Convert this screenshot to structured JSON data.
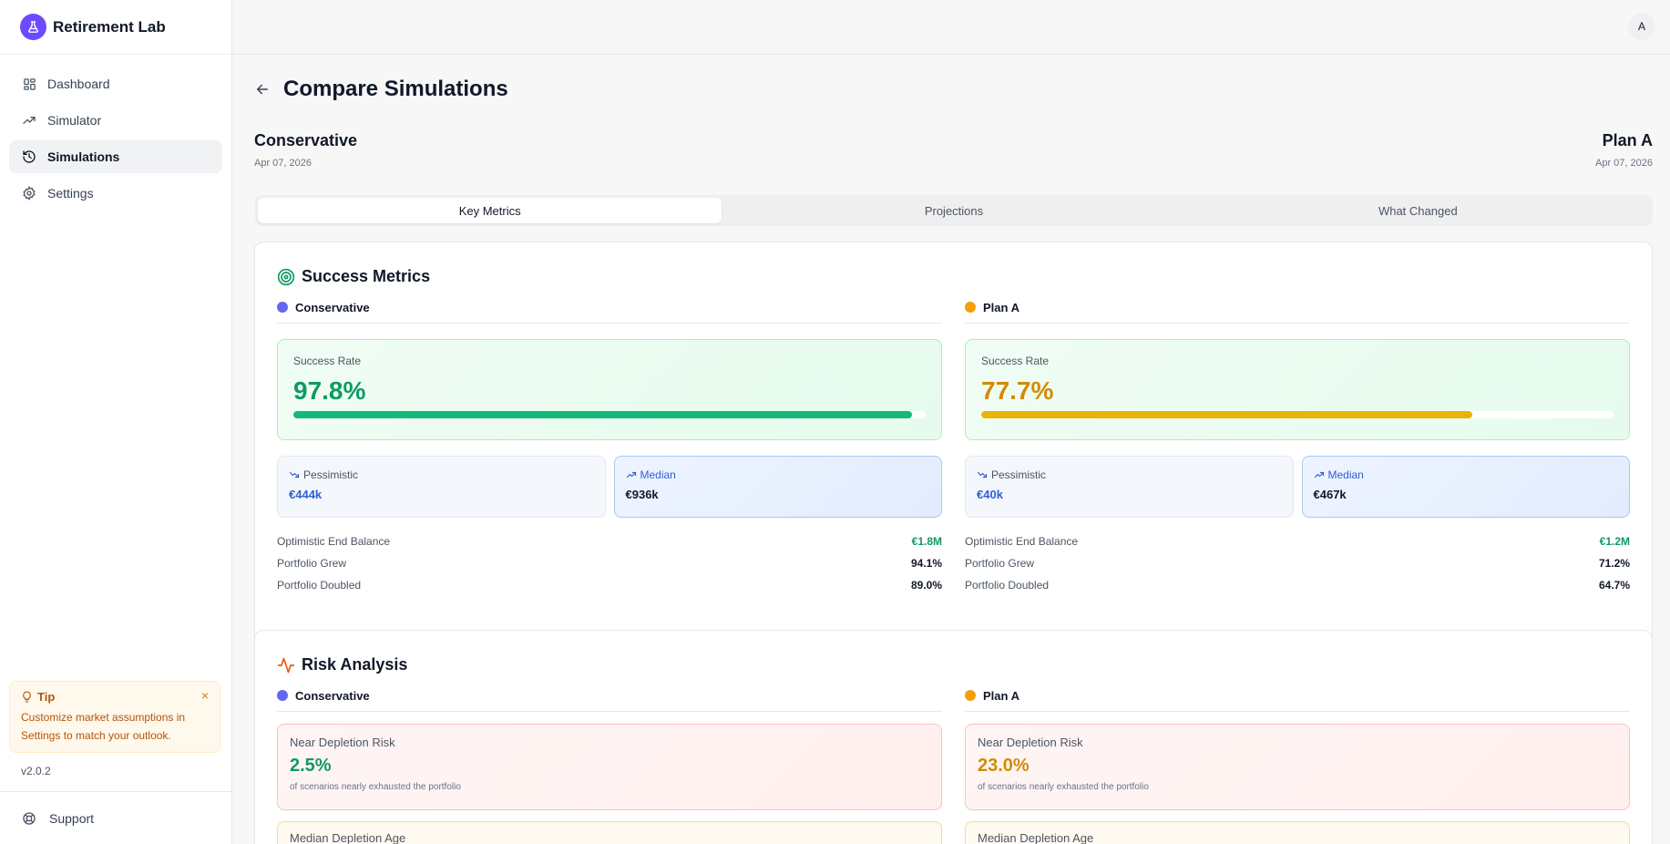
{
  "app": {
    "name": "Retirement Lab",
    "version": "v2.0.2",
    "avatar_initial": "A"
  },
  "sidebar": {
    "items": [
      {
        "label": "Dashboard",
        "icon": "grid-icon"
      },
      {
        "label": "Simulator",
        "icon": "trending-up-icon"
      },
      {
        "label": "Simulations",
        "icon": "history-icon",
        "active": true
      },
      {
        "label": "Settings",
        "icon": "gear-icon"
      }
    ],
    "tip": {
      "title": "Tip",
      "text": "Customize market assumptions in Settings to match your outlook."
    },
    "support_label": "Support"
  },
  "page": {
    "title": "Compare Simulations",
    "left_plan": {
      "name": "Conservative",
      "date": "Apr 07, 2026",
      "color": "#6366f1"
    },
    "right_plan": {
      "name": "Plan A",
      "date": "Apr 07, 2026",
      "color": "#f59e0b"
    },
    "tabs": [
      {
        "label": "Key Metrics",
        "active": true
      },
      {
        "label": "Projections"
      },
      {
        "label": "What Changed"
      }
    ]
  },
  "success": {
    "title": "Success Metrics",
    "success_rate_label": "Success Rate",
    "pessimistic_label": "Pessimistic",
    "median_label": "Median",
    "optimistic_label": "Optimistic End Balance",
    "grew_label": "Portfolio Grew",
    "doubled_label": "Portfolio Doubled",
    "left": {
      "rate": "97.8%",
      "rate_fraction": 0.978,
      "rate_color": "#0f9a63",
      "bar_color": "#14b87a",
      "pessimistic": "€444k",
      "median": "€936k",
      "optimistic": "€1.8M",
      "grew": "94.1%",
      "doubled": "89.0%"
    },
    "right": {
      "rate": "77.7%",
      "rate_fraction": 0.777,
      "rate_color": "#d18c00",
      "bar_color": "#eab308",
      "pessimistic": "€40k",
      "median": "€467k",
      "optimistic": "€1.2M",
      "grew": "71.2%",
      "doubled": "64.7%"
    }
  },
  "risk": {
    "title": "Risk Analysis",
    "near_depletion_label": "Near Depletion Risk",
    "near_depletion_note": "of scenarios nearly exhausted the portfolio",
    "median_depletion_label": "Median Depletion Age",
    "left": {
      "near_depletion": "2.5%",
      "color": "#0f9a63"
    },
    "right": {
      "near_depletion": "23.0%",
      "color": "#d18c00"
    }
  }
}
